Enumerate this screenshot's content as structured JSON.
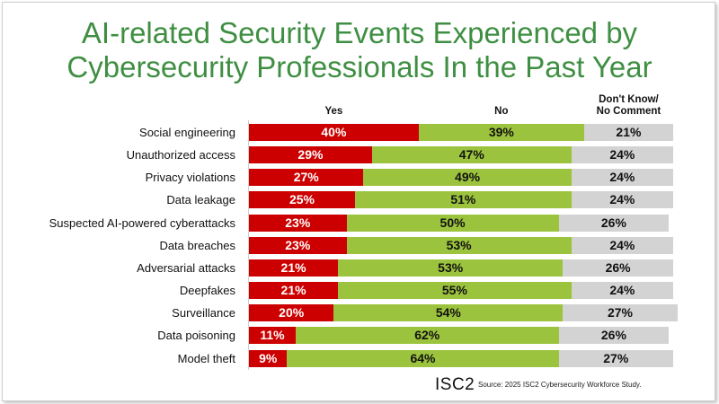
{
  "title_line1": "AI-related Security Events Experienced by",
  "title_line2": "Cybersecurity Professionals In the Past Year",
  "logo": "ISC2",
  "source": "Source: 2025 ISC2 Cybersecurity Workforce Study.",
  "chart_data": {
    "type": "bar",
    "orientation": "horizontal",
    "stacked": true,
    "title": "AI-related Security Events Experienced by Cybersecurity Professionals In the Past Year",
    "xlim": [
      0,
      100
    ],
    "categories": [
      "Social engineering",
      "Unauthorized access",
      "Privacy violations",
      "Data leakage",
      "Suspected AI-powered cyberattacks",
      "Data breaches",
      "Adversarial attacks",
      "Deepfakes",
      "Surveillance",
      "Data poisoning",
      "Model theft"
    ],
    "series": [
      {
        "name": "Yes",
        "color": "#cc0000",
        "label_color": "#ffffff",
        "values": [
          40,
          29,
          27,
          25,
          23,
          23,
          21,
          21,
          20,
          11,
          9
        ]
      },
      {
        "name": "No",
        "color": "#9cc33d",
        "label_color": "#111111",
        "values": [
          39,
          47,
          49,
          51,
          50,
          53,
          53,
          55,
          54,
          62,
          64
        ]
      },
      {
        "name": "Don't Know/\nNo Comment",
        "color": "#d3d3d3",
        "label_color": "#111111",
        "values": [
          21,
          24,
          24,
          24,
          26,
          24,
          26,
          24,
          27,
          26,
          27
        ]
      }
    ],
    "legend": "top"
  }
}
